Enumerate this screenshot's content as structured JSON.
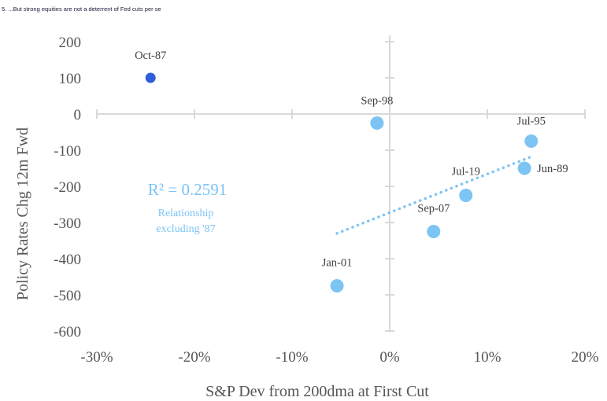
{
  "caption": "5. ...But strong equities are not a deterrent of Fed cuts per se",
  "chart_data": {
    "type": "scatter",
    "xlabel": "S&P Dev from 200dma at First Cut",
    "ylabel": "Policy Rates Chg 12m Fwd",
    "xlim": [
      -0.3,
      0.2
    ],
    "ylim": [
      -600,
      200
    ],
    "x_ticks": [
      -0.3,
      -0.2,
      -0.1,
      0.0,
      0.1,
      0.2
    ],
    "x_tick_labels": [
      "-30%",
      "-20%",
      "-10%",
      "0%",
      "10%",
      "20%"
    ],
    "y_ticks": [
      200,
      100,
      0,
      -100,
      -200,
      -300,
      -400,
      -500,
      -600
    ],
    "y_tick_labels": [
      "200",
      "100",
      "0",
      "-100",
      "-200",
      "-300",
      "-400",
      "-500",
      "-600"
    ],
    "grid": true,
    "points": [
      {
        "label": "Oct-87",
        "x": -0.245,
        "y": 100,
        "color": "#2f5ed8"
      },
      {
        "label": "Sep-98",
        "x": -0.013,
        "y": -25,
        "color": "#7cc4f4"
      },
      {
        "label": "Jul-95",
        "x": 0.145,
        "y": -75,
        "color": "#7cc4f4"
      },
      {
        "label": "Jun-89",
        "x": 0.138,
        "y": -150,
        "color": "#7cc4f4"
      },
      {
        "label": "Jul-19",
        "x": 0.078,
        "y": -225,
        "color": "#7cc4f4"
      },
      {
        "label": "Sep-07",
        "x": 0.045,
        "y": -325,
        "color": "#7cc4f4"
      },
      {
        "label": "Jan-01",
        "x": -0.054,
        "y": -475,
        "color": "#7cc4f4"
      }
    ],
    "trendline": {
      "style": "dotted",
      "color": "#7cc4f4",
      "from": {
        "x": -0.054,
        "y": -330
      },
      "to": {
        "x": 0.145,
        "y": -118
      }
    },
    "annotations": {
      "r_squared": "R² = 0.2591",
      "note_line1": "Relationship",
      "note_line2": "excluding '87"
    }
  }
}
